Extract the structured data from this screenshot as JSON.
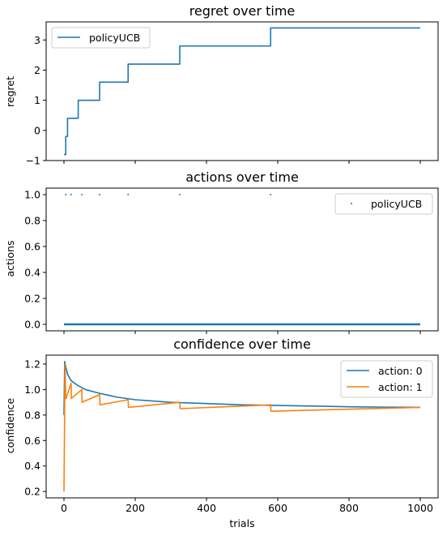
{
  "chart_data": [
    {
      "type": "line",
      "title": "regret over time",
      "xlabel": "",
      "ylabel": "regret",
      "xlim": [
        -50,
        1050
      ],
      "ylim": [
        -1,
        3.6
      ],
      "xticks": [
        0,
        200,
        400,
        600,
        800,
        1000
      ],
      "xtick_labels_visible": false,
      "yticks": [
        -1,
        0,
        1,
        2,
        3
      ],
      "ytick_labels": [
        "−1",
        "0",
        "1",
        "2",
        "3"
      ],
      "legend": "top-left",
      "grid": false,
      "series": [
        {
          "name": "policyUCB",
          "color": "#1f77b4",
          "style": "step",
          "x": [
            0,
            5,
            10,
            20,
            40,
            50,
            100,
            180,
            325,
            580,
            1000
          ],
          "y": [
            -0.8,
            -0.2,
            0.4,
            0.4,
            1.0,
            1.0,
            1.6,
            2.2,
            2.8,
            3.4,
            3.4
          ]
        }
      ]
    },
    {
      "type": "scatter",
      "title": "actions over time",
      "xlabel": "",
      "ylabel": "actions",
      "xlim": [
        -50,
        1050
      ],
      "ylim": [
        -0.05,
        1.05
      ],
      "xticks": [
        0,
        200,
        400,
        600,
        800,
        1000
      ],
      "xtick_labels_visible": false,
      "yticks": [
        0.0,
        0.2,
        0.4,
        0.6,
        0.8,
        1.0
      ],
      "ytick_labels": [
        "0.0",
        "0.2",
        "0.4",
        "0.6",
        "0.8",
        "1.0"
      ],
      "legend": "top-right",
      "grid": false,
      "series": [
        {
          "name": "policyUCB",
          "color": "#1f77b4",
          "marker": "point",
          "ones_at_x": [
            5,
            20,
            50,
            100,
            180,
            325,
            580
          ],
          "zeros_range": [
            0,
            1000
          ]
        }
      ]
    },
    {
      "type": "line",
      "title": "confidence over time",
      "xlabel": "trials",
      "ylabel": "confidence",
      "xlim": [
        -50,
        1050
      ],
      "ylim": [
        0.15,
        1.27
      ],
      "xticks": [
        0,
        200,
        400,
        600,
        800,
        1000
      ],
      "xtick_labels": [
        "0",
        "200",
        "400",
        "600",
        "800",
        "1000"
      ],
      "yticks": [
        0.2,
        0.4,
        0.6,
        0.8,
        1.0,
        1.2
      ],
      "ytick_labels": [
        "0.2",
        "0.4",
        "0.6",
        "0.8",
        "1.0",
        "1.2"
      ],
      "legend": "top-right",
      "grid": false,
      "series": [
        {
          "name": "action: 0",
          "color": "#1f77b4",
          "x": [
            0,
            2,
            5,
            10,
            20,
            40,
            60,
            100,
            150,
            200,
            300,
            400,
            500,
            600,
            700,
            800,
            900,
            1000
          ],
          "y": [
            0.8,
            1.22,
            1.18,
            1.12,
            1.07,
            1.03,
            1.0,
            0.97,
            0.94,
            0.92,
            0.9,
            0.89,
            0.88,
            0.875,
            0.87,
            0.865,
            0.862,
            0.86
          ]
        },
        {
          "name": "action: 1",
          "color": "#ff7f0e",
          "x": [
            0,
            3,
            5,
            6,
            20,
            21,
            50,
            51,
            100,
            101,
            180,
            181,
            325,
            326,
            580,
            581,
            1000
          ],
          "y": [
            0.2,
            1.2,
            0.93,
            0.93,
            1.05,
            0.93,
            1.0,
            0.9,
            0.96,
            0.88,
            0.92,
            0.86,
            0.9,
            0.85,
            0.88,
            0.83,
            0.86
          ]
        }
      ]
    }
  ]
}
